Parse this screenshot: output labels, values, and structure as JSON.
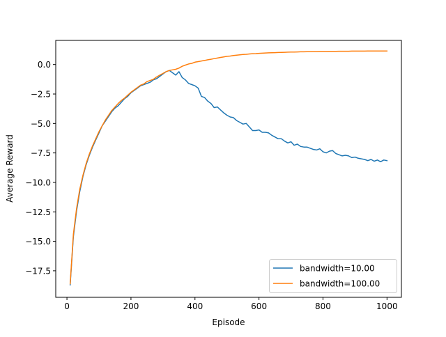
{
  "chart_data": {
    "type": "line",
    "title": "",
    "xlabel": "Episode",
    "ylabel": "Average Reward",
    "xlim": [
      -35,
      1045
    ],
    "ylim": [
      -19.75,
      2.05
    ],
    "xticks": [
      0,
      200,
      400,
      600,
      800,
      1000
    ],
    "xtick_labels": [
      "0",
      "200",
      "400",
      "600",
      "800",
      "1000"
    ],
    "yticks": [
      0,
      -2.5,
      -5,
      -7.5,
      -10,
      -12.5,
      -15,
      -17.5
    ],
    "ytick_labels": [
      "0.0",
      "−2.5",
      "−5.0",
      "−7.5",
      "−10.0",
      "−12.5",
      "−15.0",
      "−17.5"
    ],
    "grid": false,
    "legend_position": "lower right",
    "series": [
      {
        "name": "bandwidth=10.00",
        "color": "#1f77b4",
        "x": [
          10,
          20,
          30,
          40,
          50,
          60,
          70,
          80,
          90,
          100,
          110,
          120,
          130,
          140,
          150,
          160,
          170,
          180,
          190,
          200,
          210,
          220,
          230,
          240,
          250,
          260,
          270,
          280,
          290,
          300,
          310,
          320,
          330,
          340,
          350,
          360,
          370,
          380,
          390,
          400,
          410,
          420,
          430,
          440,
          450,
          460,
          470,
          480,
          490,
          500,
          510,
          520,
          530,
          540,
          550,
          560,
          570,
          580,
          590,
          600,
          610,
          620,
          630,
          640,
          650,
          660,
          670,
          680,
          690,
          700,
          710,
          720,
          730,
          740,
          750,
          760,
          770,
          780,
          790,
          800,
          810,
          820,
          830,
          840,
          850,
          860,
          870,
          880,
          890,
          900,
          910,
          920,
          930,
          940,
          950,
          960,
          970,
          980,
          990,
          1000
        ],
        "y": [
          -18.7,
          -14.6,
          -12.4,
          -10.8,
          -9.5,
          -8.5,
          -7.7,
          -7.0,
          -6.4,
          -5.8,
          -5.2,
          -4.8,
          -4.4,
          -4.0,
          -3.7,
          -3.5,
          -3.2,
          -2.9,
          -2.7,
          -2.4,
          -2.2,
          -2.0,
          -1.8,
          -1.7,
          -1.6,
          -1.5,
          -1.3,
          -1.2,
          -1.0,
          -0.8,
          -0.6,
          -0.5,
          -0.7,
          -0.9,
          -0.6,
          -1.1,
          -1.3,
          -1.6,
          -1.7,
          -1.8,
          -2.0,
          -2.7,
          -2.8,
          -3.1,
          -3.3,
          -3.65,
          -3.6,
          -3.85,
          -4.1,
          -4.3,
          -4.45,
          -4.5,
          -4.75,
          -4.9,
          -5.05,
          -5.0,
          -5.3,
          -5.6,
          -5.6,
          -5.55,
          -5.75,
          -5.75,
          -5.8,
          -6.0,
          -6.15,
          -6.3,
          -6.3,
          -6.5,
          -6.65,
          -6.55,
          -6.85,
          -6.75,
          -6.95,
          -7.0,
          -7.0,
          -7.1,
          -7.2,
          -7.25,
          -7.15,
          -7.4,
          -7.5,
          -7.35,
          -7.3,
          -7.55,
          -7.65,
          -7.75,
          -7.7,
          -7.75,
          -7.9,
          -7.85,
          -7.95,
          -8.0,
          -8.05,
          -8.15,
          -8.05,
          -8.2,
          -8.1,
          -8.25,
          -8.1,
          -8.15
        ]
      },
      {
        "name": "bandwidth=100.00",
        "color": "#ff7f0e",
        "x": [
          10,
          20,
          30,
          40,
          50,
          60,
          70,
          80,
          90,
          100,
          110,
          120,
          130,
          140,
          150,
          160,
          170,
          180,
          190,
          200,
          210,
          220,
          230,
          240,
          250,
          260,
          270,
          280,
          290,
          300,
          310,
          320,
          330,
          340,
          350,
          360,
          370,
          380,
          390,
          400,
          410,
          420,
          430,
          440,
          450,
          460,
          470,
          480,
          490,
          500,
          510,
          520,
          530,
          540,
          550,
          560,
          570,
          580,
          590,
          600,
          610,
          620,
          630,
          640,
          650,
          660,
          670,
          680,
          690,
          700,
          710,
          720,
          730,
          740,
          750,
          760,
          770,
          780,
          790,
          800,
          810,
          820,
          830,
          840,
          850,
          860,
          870,
          880,
          890,
          900,
          910,
          920,
          930,
          940,
          950,
          960,
          970,
          980,
          990,
          1000
        ],
        "y": [
          -18.6,
          -14.4,
          -12.2,
          -10.6,
          -9.4,
          -8.4,
          -7.6,
          -6.9,
          -6.3,
          -5.7,
          -5.2,
          -4.7,
          -4.3,
          -3.9,
          -3.6,
          -3.3,
          -3.05,
          -2.85,
          -2.6,
          -2.35,
          -2.15,
          -1.95,
          -1.75,
          -1.65,
          -1.45,
          -1.35,
          -1.25,
          -1.05,
          -0.9,
          -0.75,
          -0.6,
          -0.5,
          -0.45,
          -0.4,
          -0.3,
          -0.15,
          -0.05,
          0.05,
          0.1,
          0.2,
          0.25,
          0.3,
          0.35,
          0.4,
          0.45,
          0.5,
          0.55,
          0.6,
          0.65,
          0.7,
          0.72,
          0.76,
          0.8,
          0.82,
          0.85,
          0.87,
          0.9,
          0.92,
          0.93,
          0.95,
          0.96,
          0.98,
          0.99,
          1.0,
          1.01,
          1.02,
          1.03,
          1.04,
          1.05,
          1.06,
          1.06,
          1.07,
          1.08,
          1.08,
          1.09,
          1.09,
          1.1,
          1.1,
          1.11,
          1.11,
          1.11,
          1.12,
          1.12,
          1.12,
          1.13,
          1.13,
          1.13,
          1.13,
          1.14,
          1.14,
          1.14,
          1.14,
          1.14,
          1.15,
          1.15,
          1.15,
          1.15,
          1.15,
          1.15,
          1.15
        ]
      }
    ]
  }
}
